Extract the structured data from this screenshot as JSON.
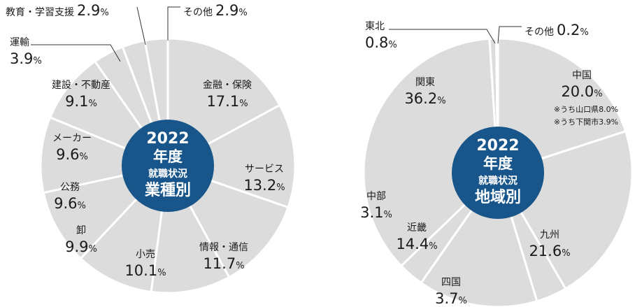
{
  "colors": {
    "slice": "#dcdcdc",
    "divider": "#ffffff",
    "center": "#17558a",
    "leader": "#333333"
  },
  "chart_data": [
    {
      "type": "pie",
      "center_title": {
        "year": "2022",
        "line2": "年度",
        "line3": "就職状況",
        "line4": "業種別"
      },
      "slices": [
        {
          "label": "金融・保険",
          "value": 17.1,
          "value_text": "17.1",
          "unit": "%"
        },
        {
          "label": "サービス",
          "value": 13.2,
          "value_text": "13.2",
          "unit": "%"
        },
        {
          "label": "情報・通信",
          "value": 11.7,
          "value_text": "11.7",
          "unit": "%"
        },
        {
          "label": "小売",
          "value": 10.1,
          "value_text": "10.1",
          "unit": "%"
        },
        {
          "label": "卸",
          "value": 9.9,
          "value_text": "9.9",
          "unit": "%"
        },
        {
          "label": "公務",
          "value": 9.6,
          "value_text": "9.6",
          "unit": "%"
        },
        {
          "label": "メーカー",
          "value": 9.6,
          "value_text": "9.6",
          "unit": "%"
        },
        {
          "label": "建設・不動産",
          "value": 9.1,
          "value_text": "9.1",
          "unit": "%"
        },
        {
          "label": "運輸",
          "value": 3.9,
          "value_text": "3.9",
          "unit": "%"
        },
        {
          "label": "教育・学習支援",
          "value": 2.9,
          "value_text": "2.9",
          "unit": "%"
        },
        {
          "label": "その他",
          "value": 2.9,
          "value_text": "2.9",
          "unit": "%"
        }
      ]
    },
    {
      "type": "pie",
      "center_title": {
        "year": "2022",
        "line2": "年度",
        "line3": "就職状況",
        "line4": "地域別"
      },
      "slices": [
        {
          "label": "中国",
          "value": 20.0,
          "value_text": "20.0",
          "unit": "%",
          "notes": [
            "※うち山口県8.0%",
            "※うち下関市3.9%"
          ]
        },
        {
          "label": "九州",
          "value": 21.6,
          "value_text": "21.6",
          "unit": "%"
        },
        {
          "label": "四国",
          "value": 3.7,
          "value_text": "3.7",
          "unit": "%"
        },
        {
          "label": "近畿",
          "value": 14.4,
          "value_text": "14.4",
          "unit": "%"
        },
        {
          "label": "中部",
          "value": 3.1,
          "value_text": "3.1",
          "unit": "%"
        },
        {
          "label": "関東",
          "value": 36.2,
          "value_text": "36.2",
          "unit": "%"
        },
        {
          "label": "東北",
          "value": 0.8,
          "value_text": "0.8",
          "unit": "%"
        },
        {
          "label": "その他",
          "value": 0.2,
          "value_text": "0.2",
          "unit": "%"
        }
      ]
    }
  ]
}
